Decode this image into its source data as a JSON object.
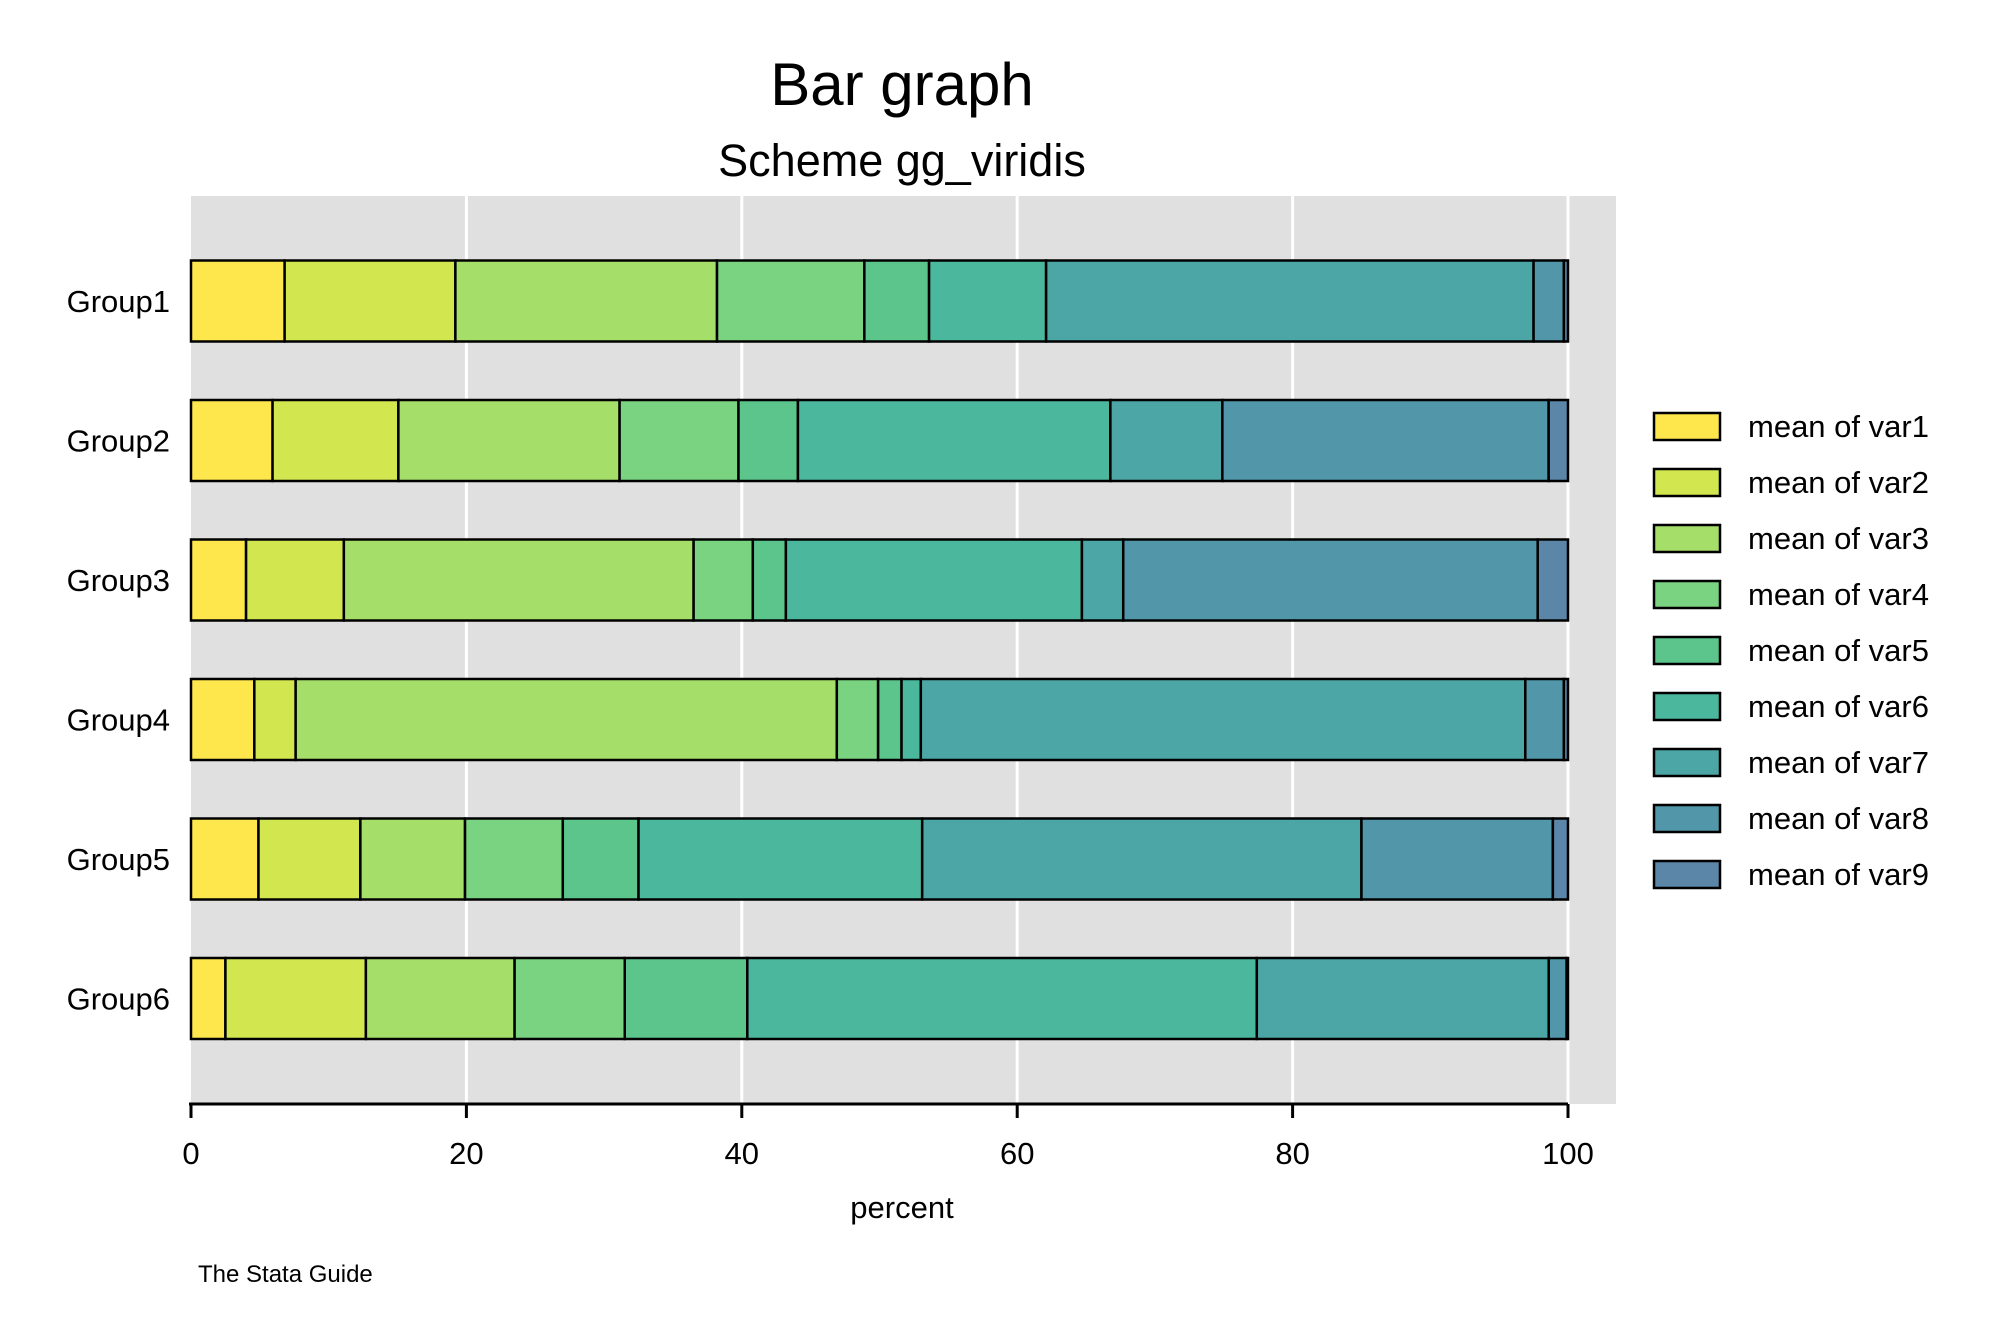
{
  "chart_data": {
    "type": "bar",
    "orientation": "horizontal",
    "stacked": true,
    "title": "Bar graph",
    "subtitle": "Scheme gg_viridis",
    "xlabel": "percent",
    "ylabel": "",
    "xlim": [
      0,
      100
    ],
    "x_ticks": [
      "0",
      "20",
      "40",
      "60",
      "80",
      "100"
    ],
    "grid": "vertical",
    "legend_position": "right",
    "note": "The Stata Guide",
    "categories": [
      "Group1",
      "Group2",
      "Group3",
      "Group4",
      "Group5",
      "Group6"
    ],
    "series": [
      {
        "name": "mean of var1",
        "color": "#FDE74C",
        "values": [
          6.8,
          5.9,
          4.0,
          4.6,
          4.9,
          2.5
        ]
      },
      {
        "name": "mean of var2",
        "color": "#D2E64F",
        "values": [
          12.4,
          9.1,
          7.1,
          3.0,
          7.4,
          10.2
        ]
      },
      {
        "name": "mean of var3",
        "color": "#A6DE6A",
        "values": [
          19.0,
          16.0,
          25.4,
          39.3,
          7.6,
          10.8
        ]
      },
      {
        "name": "mean of var4",
        "color": "#7AD381",
        "values": [
          10.7,
          8.6,
          4.3,
          3.0,
          7.1,
          8.0
        ]
      },
      {
        "name": "mean of var5",
        "color": "#5CC58C",
        "values": [
          4.7,
          4.3,
          2.4,
          1.7,
          5.5,
          8.9
        ]
      },
      {
        "name": "mean of var6",
        "color": "#4BB79D",
        "values": [
          8.5,
          22.6,
          21.5,
          1.4,
          20.6,
          37.0
        ]
      },
      {
        "name": "mean of var7",
        "color": "#4DA6A6",
        "values": [
          35.4,
          8.1,
          3.0,
          43.9,
          31.9,
          21.2
        ]
      },
      {
        "name": "mean of var8",
        "color": "#5197A9",
        "values": [
          2.2,
          23.6,
          30.1,
          2.8,
          13.9,
          1.3
        ]
      },
      {
        "name": "mean of var9",
        "color": "#5B86A8",
        "values": [
          0.3,
          1.4,
          2.2,
          0.3,
          1.1,
          0.1
        ]
      }
    ]
  }
}
